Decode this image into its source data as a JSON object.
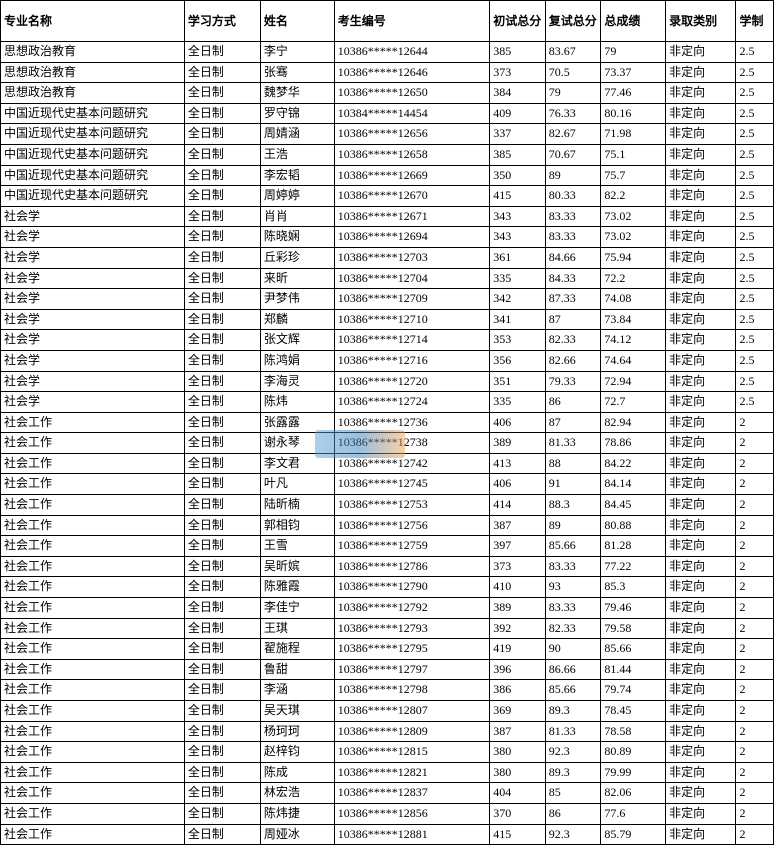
{
  "table": {
    "columns": [
      "专业名称",
      "学习方式",
      "姓名",
      "考生编号",
      "初试总分",
      "复试总分",
      "总成绩",
      "录取类别",
      "学制"
    ],
    "column_classes": [
      "col-major",
      "col-study",
      "col-name",
      "col-id",
      "col-score1",
      "col-score2",
      "col-total",
      "col-type",
      "col-years"
    ],
    "rows": [
      [
        "思想政治教育",
        "全日制",
        "李宁",
        "10386*****12644",
        "385",
        "83.67",
        "79",
        "非定向",
        "2.5"
      ],
      [
        "思想政治教育",
        "全日制",
        "张骞",
        "10386*****12646",
        "373",
        "70.5",
        "73.37",
        "非定向",
        "2.5"
      ],
      [
        "思想政治教育",
        "全日制",
        "魏梦华",
        "10386*****12650",
        "384",
        "79",
        "77.46",
        "非定向",
        "2.5"
      ],
      [
        "中国近现代史基本问题研究",
        "全日制",
        "罗守锦",
        "10384*****14454",
        "409",
        "76.33",
        "80.16",
        "非定向",
        "2.5"
      ],
      [
        "中国近现代史基本问题研究",
        "全日制",
        "周婧涵",
        "10386*****12656",
        "337",
        "82.67",
        "71.98",
        "非定向",
        "2.5"
      ],
      [
        "中国近现代史基本问题研究",
        "全日制",
        "王浩",
        "10386*****12658",
        "385",
        "70.67",
        "75.1",
        "非定向",
        "2.5"
      ],
      [
        "中国近现代史基本问题研究",
        "全日制",
        "李宏韬",
        "10386*****12669",
        "350",
        "89",
        "75.7",
        "非定向",
        "2.5"
      ],
      [
        "中国近现代史基本问题研究",
        "全日制",
        "周婷婷",
        "10386*****12670",
        "415",
        "80.33",
        "82.2",
        "非定向",
        "2.5"
      ],
      [
        "社会学",
        "全日制",
        "肖肖",
        "10386*****12671",
        "343",
        "83.33",
        "73.02",
        "非定向",
        "2.5"
      ],
      [
        "社会学",
        "全日制",
        "陈晓娴",
        "10386*****12694",
        "343",
        "83.33",
        "73.02",
        "非定向",
        "2.5"
      ],
      [
        "社会学",
        "全日制",
        "丘彩珍",
        "10386*****12703",
        "361",
        "84.66",
        "75.94",
        "非定向",
        "2.5"
      ],
      [
        "社会学",
        "全日制",
        "来昕",
        "10386*****12704",
        "335",
        "84.33",
        "72.2",
        "非定向",
        "2.5"
      ],
      [
        "社会学",
        "全日制",
        "尹梦伟",
        "10386*****12709",
        "342",
        "87.33",
        "74.08",
        "非定向",
        "2.5"
      ],
      [
        "社会学",
        "全日制",
        "郑麟",
        "10386*****12710",
        "341",
        "87",
        "73.84",
        "非定向",
        "2.5"
      ],
      [
        "社会学",
        "全日制",
        "张文辉",
        "10386*****12714",
        "353",
        "82.33",
        "74.12",
        "非定向",
        "2.5"
      ],
      [
        "社会学",
        "全日制",
        "陈鸿娟",
        "10386*****12716",
        "356",
        "82.66",
        "74.64",
        "非定向",
        "2.5"
      ],
      [
        "社会学",
        "全日制",
        "李海灵",
        "10386*****12720",
        "351",
        "79.33",
        "72.94",
        "非定向",
        "2.5"
      ],
      [
        "社会学",
        "全日制",
        "陈炜",
        "10386*****12724",
        "335",
        "86",
        "72.7",
        "非定向",
        "2.5"
      ],
      [
        "社会工作",
        "全日制",
        "张露露",
        "10386*****12736",
        "406",
        "87",
        "82.94",
        "非定向",
        "2"
      ],
      [
        "社会工作",
        "全日制",
        "谢永琴",
        "10386*****12738",
        "389",
        "81.33",
        "78.86",
        "非定向",
        "2"
      ],
      [
        "社会工作",
        "全日制",
        "李文君",
        "10386*****12742",
        "413",
        "88",
        "84.22",
        "非定向",
        "2"
      ],
      [
        "社会工作",
        "全日制",
        "叶凡",
        "10386*****12745",
        "406",
        "91",
        "84.14",
        "非定向",
        "2"
      ],
      [
        "社会工作",
        "全日制",
        "陆昕楠",
        "10386*****12753",
        "414",
        "88.3",
        "84.45",
        "非定向",
        "2"
      ],
      [
        "社会工作",
        "全日制",
        "郭相钧",
        "10386*****12756",
        "387",
        "89",
        "80.88",
        "非定向",
        "2"
      ],
      [
        "社会工作",
        "全日制",
        "王雪",
        "10386*****12759",
        "397",
        "85.66",
        "81.28",
        "非定向",
        "2"
      ],
      [
        "社会工作",
        "全日制",
        "吴昕嫔",
        "10386*****12786",
        "373",
        "83.33",
        "77.22",
        "非定向",
        "2"
      ],
      [
        "社会工作",
        "全日制",
        "陈雅霞",
        "10386*****12790",
        "410",
        "93",
        "85.3",
        "非定向",
        "2"
      ],
      [
        "社会工作",
        "全日制",
        "李佳宁",
        "10386*****12792",
        "389",
        "83.33",
        "79.46",
        "非定向",
        "2"
      ],
      [
        "社会工作",
        "全日制",
        "王琪",
        "10386*****12793",
        "392",
        "82.33",
        "79.58",
        "非定向",
        "2"
      ],
      [
        "社会工作",
        "全日制",
        "翟施程",
        "10386*****12795",
        "419",
        "90",
        "85.66",
        "非定向",
        "2"
      ],
      [
        "社会工作",
        "全日制",
        "鲁甜",
        "10386*****12797",
        "396",
        "86.66",
        "81.44",
        "非定向",
        "2"
      ],
      [
        "社会工作",
        "全日制",
        "李涵",
        "10386*****12798",
        "386",
        "85.66",
        "79.74",
        "非定向",
        "2"
      ],
      [
        "社会工作",
        "全日制",
        "吴天琪",
        "10386*****12807",
        "369",
        "89.3",
        "78.45",
        "非定向",
        "2"
      ],
      [
        "社会工作",
        "全日制",
        "杨珂珂",
        "10386*****12809",
        "387",
        "81.33",
        "78.58",
        "非定向",
        "2"
      ],
      [
        "社会工作",
        "全日制",
        "赵梓钧",
        "10386*****12815",
        "380",
        "92.3",
        "80.89",
        "非定向",
        "2"
      ],
      [
        "社会工作",
        "全日制",
        "陈成",
        "10386*****12821",
        "380",
        "89.3",
        "79.99",
        "非定向",
        "2"
      ],
      [
        "社会工作",
        "全日制",
        "林宏浩",
        "10386*****12837",
        "404",
        "85",
        "82.06",
        "非定向",
        "2"
      ],
      [
        "社会工作",
        "全日制",
        "陈炜捷",
        "10386*****12856",
        "370",
        "86",
        "77.6",
        "非定向",
        "2"
      ],
      [
        "社会工作",
        "全日制",
        "周娅冰",
        "10386*****12881",
        "415",
        "92.3",
        "85.79",
        "非定向",
        "2"
      ]
    ],
    "header_background": "#ffffff",
    "border_color": "#000000",
    "font_size": 12
  }
}
